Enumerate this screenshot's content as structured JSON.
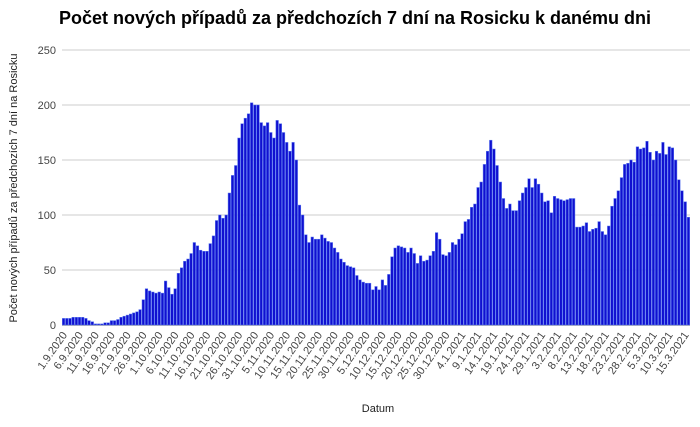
{
  "chart_data": {
    "type": "bar",
    "title": "Počet nových případů za předchozích 7 dní na Rosicku k danému dni",
    "xlabel": "Datum",
    "ylabel": "Počet nových případů za předchozích 7 dní na Rosicku",
    "ylim": [
      0,
      250
    ],
    "yticks": [
      0,
      50,
      100,
      150,
      200,
      250
    ],
    "grid": true,
    "bar_color": "#1010d0",
    "tick_every": 5,
    "xtick_labels": [
      "1.9.2020",
      "6.9.2020",
      "11.9.2020",
      "16.9.2020",
      "21.9.2020",
      "26.9.2020",
      "1.10.2020",
      "6.10.2020",
      "11.10.2020",
      "16.10.2020",
      "21.10.2020",
      "26.10.2020",
      "31.10.2020",
      "5.11.2020",
      "10.11.2020",
      "15.11.2020",
      "20.11.2020",
      "25.11.2020",
      "30.11.2020",
      "5.12.2020",
      "10.12.2020",
      "15.12.2020",
      "20.12.2020",
      "25.12.2020",
      "30.12.2020",
      "4.1.2021",
      "9.1.2021",
      "14.1.2021",
      "19.1.2021",
      "24.1.2021",
      "29.1.2021",
      "3.2.2021",
      "8.2.2021",
      "13.2.2021",
      "18.2.2021",
      "23.2.2021",
      "28.2.2021",
      "5.3.2021",
      "10.3.2021",
      "15.3.2021"
    ],
    "values": [
      6,
      6,
      6,
      7,
      7,
      7,
      7,
      6,
      4,
      3,
      1,
      1,
      1,
      2,
      2,
      4,
      4,
      5,
      7,
      8,
      9,
      10,
      11,
      12,
      14,
      23,
      33,
      31,
      30,
      29,
      30,
      29,
      40,
      34,
      28,
      33,
      47,
      52,
      58,
      60,
      65,
      75,
      72,
      68,
      67,
      67,
      74,
      81,
      95,
      100,
      97,
      100,
      120,
      136,
      145,
      170,
      183,
      188,
      192,
      202,
      200,
      200,
      184,
      181,
      184,
      175,
      170,
      186,
      183,
      175,
      166,
      158,
      166,
      150,
      109,
      100,
      82,
      75,
      80,
      78,
      78,
      82,
      79,
      76,
      75,
      70,
      66,
      60,
      57,
      54,
      53,
      52,
      45,
      41,
      39,
      38,
      38,
      32,
      35,
      32,
      41,
      36,
      46,
      62,
      70,
      72,
      71,
      70,
      66,
      70,
      65,
      56,
      63,
      58,
      59,
      63,
      67,
      84,
      78,
      64,
      63,
      66,
      75,
      73,
      78,
      83,
      94,
      96,
      107,
      110,
      125,
      130,
      146,
      158,
      168,
      160,
      145,
      130,
      115,
      106,
      110,
      104,
      104,
      113,
      120,
      125,
      133,
      125,
      133,
      128,
      120,
      112,
      113,
      102,
      117,
      115,
      114,
      113,
      114,
      115,
      115,
      89,
      89,
      90,
      93,
      85,
      87,
      88,
      94,
      85,
      82,
      90,
      108,
      115,
      122,
      134,
      146,
      147,
      150,
      148,
      162,
      160,
      161,
      167,
      157,
      150,
      158,
      156,
      166,
      155,
      162,
      161,
      150,
      132,
      122,
      112,
      98
    ]
  }
}
